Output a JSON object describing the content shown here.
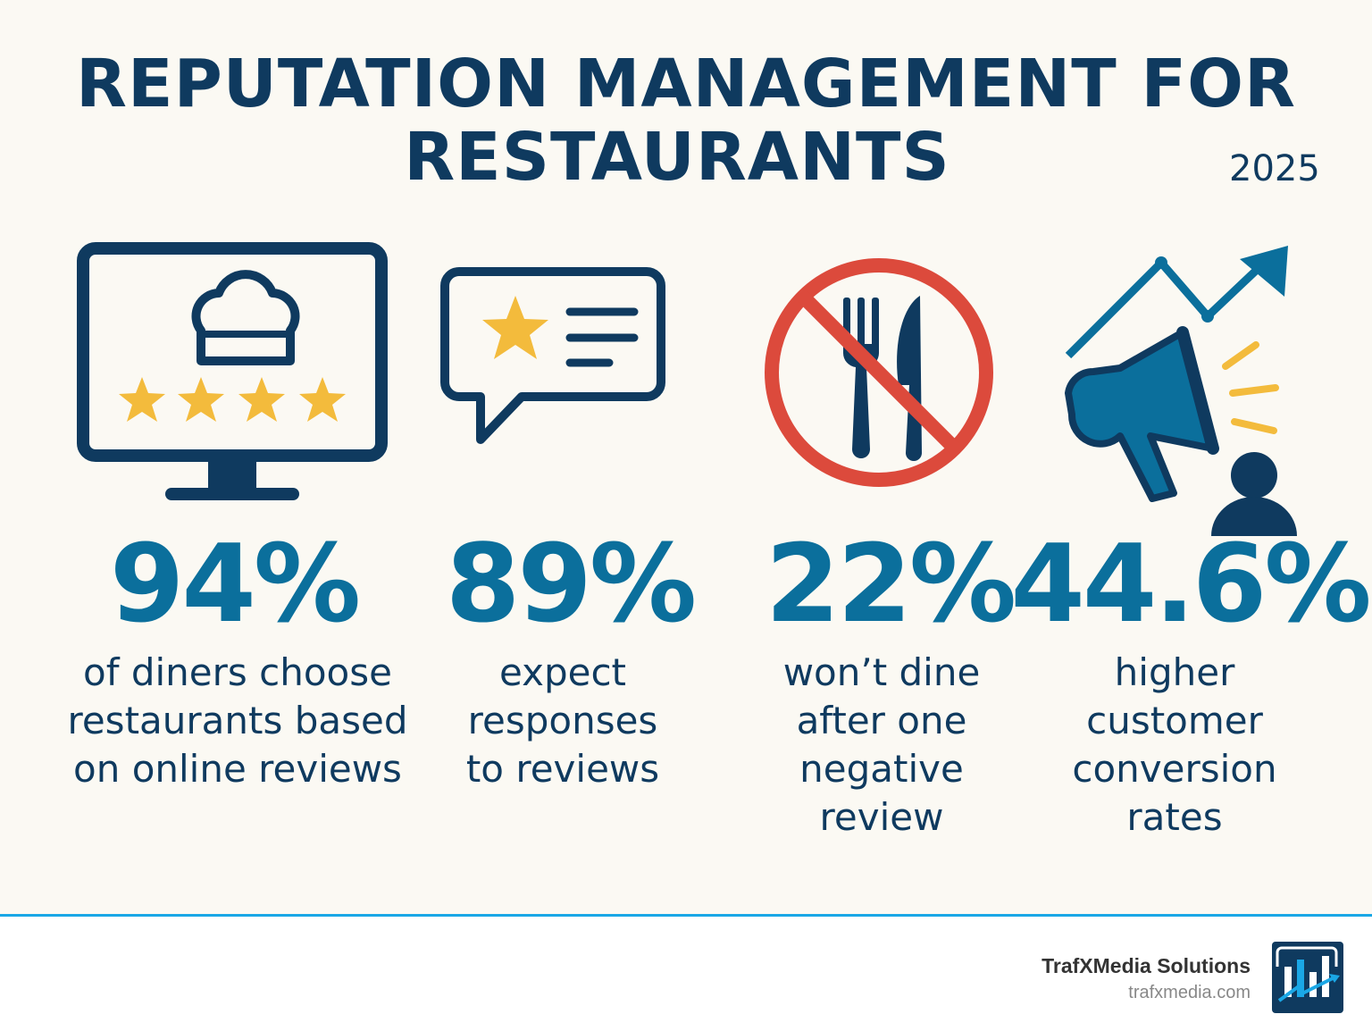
{
  "header": {
    "title_line1": "REPUTATION MANAGEMENT FOR",
    "title_line2": "RESTAURANTS",
    "year": "2025"
  },
  "stats": [
    {
      "icon": "monitor-chef-hat-stars-icon",
      "value": "94%",
      "description": "of diners choose restaurants based on online reviews"
    },
    {
      "icon": "review-speech-bubble-icon",
      "value": "89%",
      "description": "expect responses to reviews"
    },
    {
      "icon": "no-dining-icon",
      "value": "22%",
      "description": "won’t dine after one negative review"
    },
    {
      "icon": "megaphone-growth-icon",
      "value": "44.6%",
      "description": "higher customer conversion rates"
    }
  ],
  "footer": {
    "brand": "TrafXMedia Solutions",
    "url": "trafxmedia.com"
  },
  "colors": {
    "navy": "#0f3a5f",
    "blue": "#0b6f9c",
    "star": "#f3bb3c",
    "prohibit": "#dc4a3c",
    "accent_line": "#1aa7e6"
  }
}
